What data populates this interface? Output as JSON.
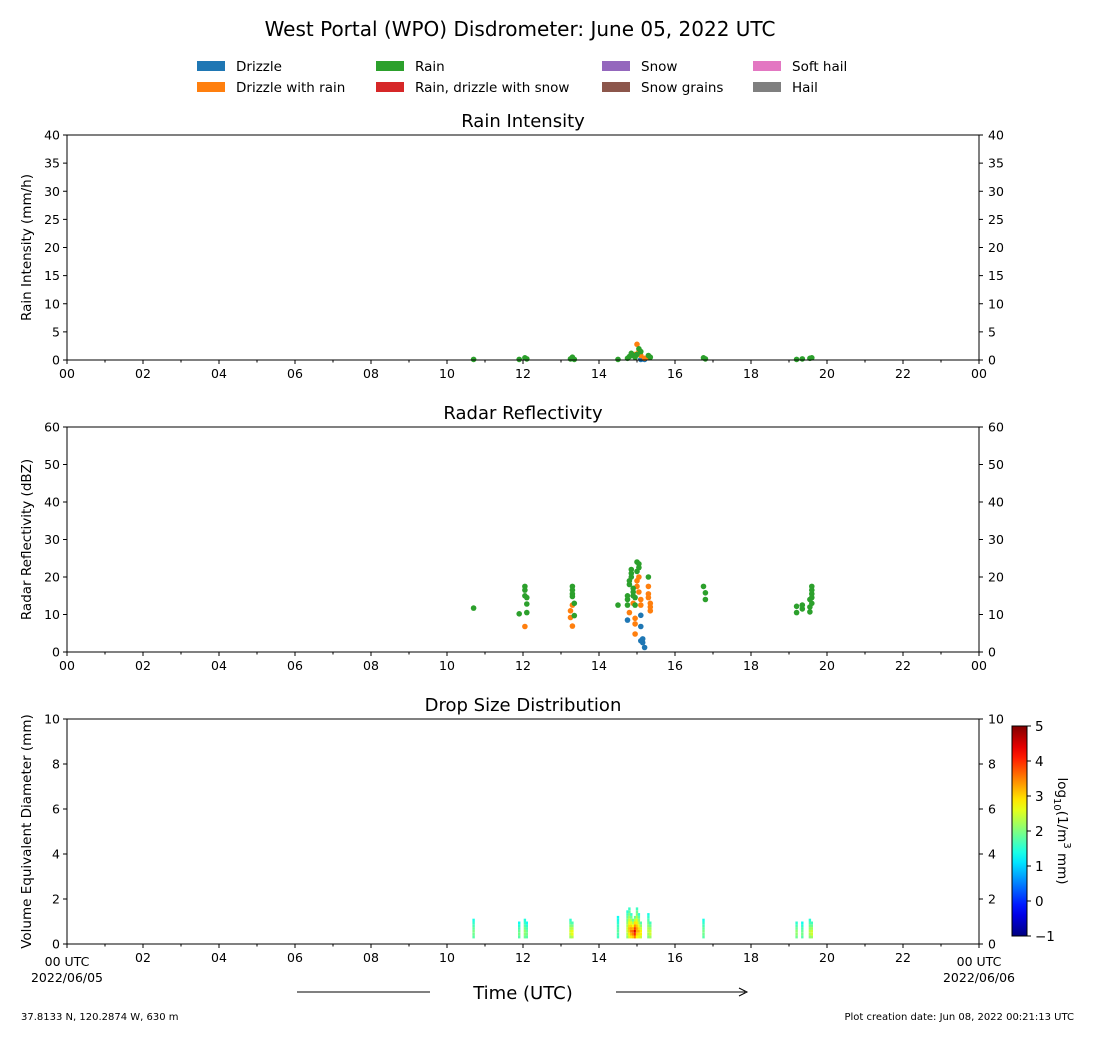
{
  "title": "West Portal (WPO) Disdrometer: June 05, 2022 UTC",
  "legend": [
    {
      "label": "Drizzle",
      "color": "#1f77b4"
    },
    {
      "label": "Drizzle with rain",
      "color": "#ff7f0e"
    },
    {
      "label": "Rain",
      "color": "#2ca02c"
    },
    {
      "label": "Rain, drizzle with snow",
      "color": "#d62728"
    },
    {
      "label": "Snow",
      "color": "#9467bd"
    },
    {
      "label": "Snow grains",
      "color": "#8c564b"
    },
    {
      "label": "Soft hail",
      "color": "#e377c2"
    },
    {
      "label": "Hail",
      "color": "#7f7f7f"
    }
  ],
  "footer": {
    "location": "37.8133 N, 120.2874 W, 630 m",
    "creation": "Plot creation date: Jun 08, 2022 00:21:13 UTC",
    "xlabel": "Time (UTC)",
    "start_tick": "00 UTC",
    "start_date": "2022/06/05",
    "end_tick": "00 UTC",
    "end_date": "2022/06/06"
  },
  "chart_data": [
    {
      "type": "scatter",
      "title": "Rain Intensity",
      "ylabel": "Rain Intensity (mm/h)",
      "xlim": [
        0,
        24
      ],
      "ylim": [
        0,
        40
      ],
      "yticks": [
        0,
        5,
        10,
        15,
        20,
        25,
        30,
        35,
        40
      ],
      "xtick_labels": [
        "00",
        "02",
        "04",
        "06",
        "08",
        "10",
        "12",
        "14",
        "16",
        "18",
        "20",
        "22",
        "00"
      ],
      "series": [
        {
          "category": "Drizzle",
          "points": [
            [
              15.1,
              0.1
            ],
            [
              15.2,
              0.1
            ],
            [
              15.15,
              0.2
            ]
          ]
        },
        {
          "category": "Drizzle with rain",
          "points": [
            [
              15.0,
              2.8
            ],
            [
              15.05,
              1.5
            ],
            [
              15.1,
              0.8
            ],
            [
              15.3,
              0.5
            ],
            [
              15.2,
              0.3
            ],
            [
              14.95,
              1.0
            ]
          ]
        },
        {
          "category": "Rain",
          "points": [
            [
              10.7,
              0.1
            ],
            [
              11.9,
              0.1
            ],
            [
              12.05,
              0.4
            ],
            [
              12.1,
              0.2
            ],
            [
              13.25,
              0.2
            ],
            [
              13.3,
              0.5
            ],
            [
              13.35,
              0.1
            ],
            [
              14.5,
              0.1
            ],
            [
              14.75,
              0.3
            ],
            [
              14.8,
              0.6
            ],
            [
              14.85,
              1.2
            ],
            [
              14.9,
              0.8
            ],
            [
              14.95,
              0.5
            ],
            [
              15.0,
              1.0
            ],
            [
              15.05,
              2.0
            ],
            [
              15.1,
              1.5
            ],
            [
              15.3,
              0.8
            ],
            [
              15.35,
              0.5
            ],
            [
              16.75,
              0.4
            ],
            [
              16.8,
              0.2
            ],
            [
              19.2,
              0.1
            ],
            [
              19.35,
              0.2
            ],
            [
              19.55,
              0.3
            ],
            [
              19.6,
              0.4
            ]
          ]
        }
      ]
    },
    {
      "type": "scatter",
      "title": "Radar Reflectivity",
      "ylabel": "Radar Reflectivity (dBZ)",
      "xlim": [
        0,
        24
      ],
      "ylim": [
        0,
        60
      ],
      "yticks": [
        0,
        10,
        20,
        30,
        40,
        50,
        60
      ],
      "xtick_labels": [
        "00",
        "02",
        "04",
        "06",
        "08",
        "10",
        "12",
        "14",
        "16",
        "18",
        "20",
        "22",
        "00"
      ],
      "series": [
        {
          "category": "Drizzle",
          "points": [
            [
              14.75,
              8.5
            ],
            [
              15.1,
              6.8
            ],
            [
              15.1,
              9.8
            ],
            [
              15.15,
              3.5
            ],
            [
              15.15,
              2.5
            ],
            [
              15.2,
              1.2
            ],
            [
              15.1,
              3.0
            ]
          ]
        },
        {
          "category": "Drizzle with rain",
          "points": [
            [
              12.05,
              6.8
            ],
            [
              13.25,
              9.2
            ],
            [
              13.25,
              11.0
            ],
            [
              13.3,
              12.5
            ],
            [
              13.3,
              6.9
            ],
            [
              14.8,
              10.5
            ],
            [
              14.9,
              13.0
            ],
            [
              14.95,
              9.0
            ],
            [
              14.95,
              7.5
            ],
            [
              14.95,
              4.8
            ],
            [
              15.0,
              17.5
            ],
            [
              15.0,
              19.0
            ],
            [
              15.05,
              20.0
            ],
            [
              15.05,
              16.0
            ],
            [
              15.1,
              14.0
            ],
            [
              15.1,
              12.5
            ],
            [
              15.3,
              17.5
            ],
            [
              15.3,
              15.5
            ],
            [
              15.3,
              14.5
            ],
            [
              15.35,
              13.0
            ],
            [
              15.35,
              12.0
            ],
            [
              15.35,
              11.0
            ]
          ]
        },
        {
          "category": "Rain",
          "points": [
            [
              10.7,
              11.7
            ],
            [
              11.9,
              10.2
            ],
            [
              12.05,
              17.5
            ],
            [
              12.05,
              16.5
            ],
            [
              12.05,
              15.0
            ],
            [
              12.1,
              14.5
            ],
            [
              12.1,
              12.8
            ],
            [
              12.1,
              10.5
            ],
            [
              13.3,
              17.5
            ],
            [
              13.3,
              16.5
            ],
            [
              13.3,
              15.5
            ],
            [
              13.3,
              14.8
            ],
            [
              13.35,
              13.0
            ],
            [
              13.35,
              9.7
            ],
            [
              14.5,
              12.5
            ],
            [
              14.75,
              15.0
            ],
            [
              14.75,
              14.0
            ],
            [
              14.75,
              12.5
            ],
            [
              14.8,
              18.0
            ],
            [
              14.8,
              19.0
            ],
            [
              14.85,
              22.0
            ],
            [
              14.85,
              21.0
            ],
            [
              14.85,
              20.0
            ],
            [
              14.9,
              17.0
            ],
            [
              14.9,
              16.0
            ],
            [
              14.9,
              15.0
            ],
            [
              14.95,
              14.5
            ],
            [
              14.95,
              12.5
            ],
            [
              15.0,
              24.0
            ],
            [
              15.05,
              23.5
            ],
            [
              15.05,
              22.5
            ],
            [
              15.0,
              21.5
            ],
            [
              15.3,
              20.0
            ],
            [
              16.75,
              17.5
            ],
            [
              16.8,
              15.8
            ],
            [
              16.8,
              14.0
            ],
            [
              19.2,
              10.5
            ],
            [
              19.2,
              12.2
            ],
            [
              19.35,
              12.5
            ],
            [
              19.35,
              11.5
            ],
            [
              19.55,
              10.7
            ],
            [
              19.55,
              12.0
            ],
            [
              19.6,
              13.0
            ],
            [
              19.6,
              14.5
            ],
            [
              19.6,
              15.5
            ],
            [
              19.6,
              16.5
            ],
            [
              19.6,
              17.5
            ],
            [
              19.55,
              14.0
            ]
          ]
        }
      ]
    },
    {
      "type": "heatmap",
      "title": "Drop Size Distribution",
      "ylabel": "Volume Equivalent Diameter (mm)",
      "xlim": [
        0,
        24
      ],
      "ylim": [
        0,
        10
      ],
      "yticks": [
        0,
        2,
        4,
        6,
        8,
        10
      ],
      "xtick_labels": [
        "",
        "02",
        "04",
        "06",
        "08",
        "10",
        "12",
        "14",
        "16",
        "18",
        "20",
        "22",
        ""
      ],
      "colorbar": {
        "label": "log10(1/m3 mm)",
        "label_main": "log",
        "label_sub": "10",
        "label_rest": "(1/m",
        "label_sup": "3",
        "label_end": " mm)",
        "range": [
          -1,
          5
        ],
        "ticks": [
          -1,
          0,
          1,
          2,
          3,
          4,
          5
        ],
        "tick_labels": [
          "−1",
          "0",
          "1",
          "2",
          "3",
          "4",
          "5"
        ]
      },
      "columns": [
        {
          "t": 10.7,
          "dmax": 1.1,
          "v": 2.0
        },
        {
          "t": 11.9,
          "dmax": 0.9,
          "v": 2.0
        },
        {
          "t": 12.05,
          "dmax": 1.1,
          "v": 2.2
        },
        {
          "t": 12.1,
          "dmax": 0.9,
          "v": 2.0
        },
        {
          "t": 13.25,
          "dmax": 1.1,
          "v": 2.6
        },
        {
          "t": 13.3,
          "dmax": 1.0,
          "v": 2.8
        },
        {
          "t": 14.5,
          "dmax": 1.2,
          "v": 1.8
        },
        {
          "t": 14.75,
          "dmax": 1.5,
          "v": 2.5
        },
        {
          "t": 14.8,
          "dmax": 1.6,
          "v": 3.2
        },
        {
          "t": 14.85,
          "dmax": 1.3,
          "v": 3.6
        },
        {
          "t": 14.9,
          "dmax": 1.1,
          "v": 3.8
        },
        {
          "t": 14.95,
          "dmax": 1.2,
          "v": 4.5
        },
        {
          "t": 15.0,
          "dmax": 1.6,
          "v": 3.4
        },
        {
          "t": 15.05,
          "dmax": 1.3,
          "v": 3.2
        },
        {
          "t": 15.1,
          "dmax": 1.0,
          "v": 3.0
        },
        {
          "t": 15.3,
          "dmax": 1.3,
          "v": 2.4
        },
        {
          "t": 15.35,
          "dmax": 1.0,
          "v": 2.6
        },
        {
          "t": 16.75,
          "dmax": 1.1,
          "v": 2.0
        },
        {
          "t": 19.2,
          "dmax": 1.0,
          "v": 2.2
        },
        {
          "t": 19.35,
          "dmax": 0.9,
          "v": 2.0
        },
        {
          "t": 19.55,
          "dmax": 1.1,
          "v": 2.4
        },
        {
          "t": 19.6,
          "dmax": 1.0,
          "v": 2.6
        }
      ]
    }
  ]
}
